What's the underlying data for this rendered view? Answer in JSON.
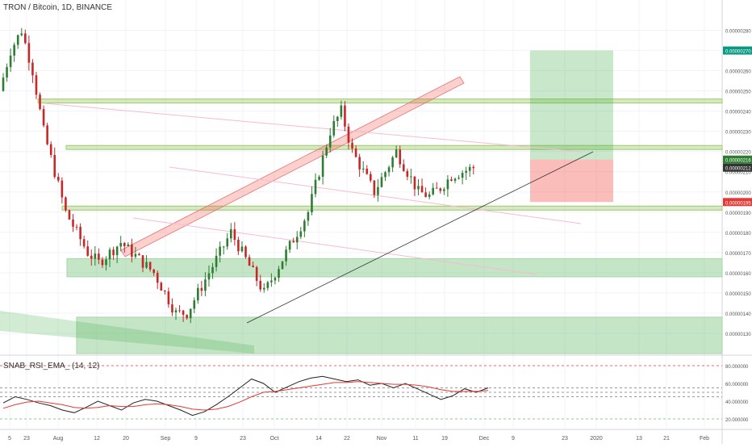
{
  "chart_data": [
    {
      "type": "candlestick",
      "title": "TRON / Bitcoin, 1D, BINANCE",
      "price_axis": {
        "ylim": [
          1.2e-06,
          2.95e-06
        ],
        "ticks": [
          "0.00000280",
          "0.00000270",
          "0.00000260",
          "0.00000250",
          "0.00000240",
          "0.00000230",
          "0.00000220",
          "0.00000210",
          "0.00000200",
          "0.00000190",
          "0.00000180",
          "0.00000170",
          "0.00000160",
          "0.00000150",
          "0.00000140",
          "0.00000130"
        ],
        "tick_values": [
          2.8e-06,
          2.7e-06,
          2.6e-06,
          2.5e-06,
          2.4e-06,
          2.3e-06,
          2.2e-06,
          2.1e-06,
          2e-06,
          1.9e-06,
          1.8e-06,
          1.7e-06,
          1.6e-06,
          1.5e-06,
          1.4e-06,
          1.3e-06
        ]
      },
      "price_labels": [
        {
          "text": "0.00000270",
          "value": 2.7e-06,
          "color": "#089981"
        },
        {
          "text": "0.00000216",
          "value": 2.16e-06,
          "color": "#2e7d32"
        },
        {
          "text": "0.00000212",
          "value": 2.12e-06,
          "color": "#333333"
        },
        {
          "text": "0.00000195",
          "value": 1.95e-06,
          "color": "#e53935"
        }
      ],
      "time_axis": {
        "labels": [
          "5",
          "23",
          "Aug",
          "12",
          "20",
          "Sep",
          "9",
          "23",
          "Oct",
          "14",
          "22",
          "Nov",
          "11",
          "19",
          "Dec",
          "9",
          "23",
          "2020",
          "13",
          "21",
          "Feb"
        ],
        "colors": {
          "up": "#2e7d32",
          "down": "#c62828"
        }
      },
      "candles_close_path": [
        2.5e-06,
        2.7e-06,
        2.8e-06,
        2.6e-06,
        2.3e-06,
        2.1e-06,
        1.9e-06,
        1.8e-06,
        1.7e-06,
        1.65e-06,
        1.7e-06,
        1.75e-06,
        1.7e-06,
        1.65e-06,
        1.6e-06,
        1.5e-06,
        1.4e-06,
        1.4e-06,
        1.5e-06,
        1.6e-06,
        1.7e-06,
        1.8e-06,
        1.7e-06,
        1.6e-06,
        1.5e-06,
        1.6e-06,
        1.7e-06,
        1.8e-06,
        1.9e-06,
        2.1e-06,
        2.3e-06,
        2.4e-06,
        2.2e-06,
        2.1e-06,
        2e-06,
        2.1e-06,
        2.2e-06,
        2.1e-06,
        2e-06,
        1.98e-06,
        2.02e-06,
        2.08e-06,
        2.1e-06,
        2.12e-06
      ]
    },
    {
      "type": "line",
      "title": "SNAB_RSI_EMA_ (14, 12)",
      "ylim": [
        10,
        90
      ],
      "ticks": [
        "80.000000",
        "60.000000",
        "40.000000",
        "20.000000"
      ],
      "tick_values": [
        80,
        60,
        40,
        20
      ],
      "series": [
        {
          "values": [
            38,
            45,
            42,
            38,
            35,
            30,
            27,
            33,
            40,
            35,
            30,
            38,
            42,
            40,
            35,
            30,
            24,
            28,
            36,
            45,
            55,
            65,
            60,
            50,
            56,
            62,
            66,
            68,
            65,
            62,
            64,
            58,
            60,
            55,
            60,
            54,
            48,
            42,
            46,
            54,
            50,
            55
          ]
        },
        {
          "values": [
            32,
            36,
            39,
            40,
            38,
            36,
            33,
            32,
            33,
            35,
            34,
            34,
            36,
            37,
            36,
            34,
            31,
            30,
            31,
            34,
            39,
            45,
            50,
            51,
            53,
            55,
            57,
            59,
            61,
            61,
            62,
            61,
            60,
            59,
            59,
            58,
            56,
            53,
            51,
            51,
            51,
            52
          ]
        }
      ]
    }
  ]
}
